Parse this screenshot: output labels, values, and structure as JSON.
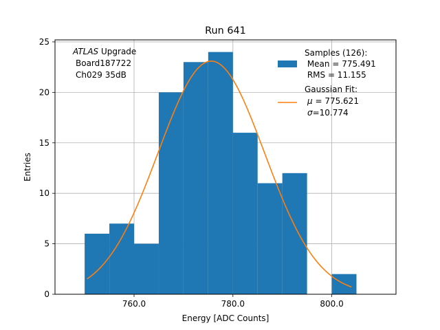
{
  "chart_data": {
    "type": "bar",
    "title": "Run 641",
    "xlabel": "Energy [ADC Counts]",
    "ylabel": "Entries",
    "xlim": [
      744,
      813
    ],
    "ylim": [
      0,
      25.2
    ],
    "grid": true,
    "legend_placement": "top-right",
    "xticks": [
      760,
      780,
      800
    ],
    "xtick_labels": [
      "760.0",
      "780.0",
      "800.0"
    ],
    "yticks": [
      0,
      5,
      10,
      15,
      20,
      25
    ],
    "ytick_labels": [
      "0",
      "5",
      "10",
      "15",
      "20",
      "25"
    ],
    "annotation": {
      "italic": "ATLAS",
      "line1_rest": " Upgrade",
      "line2": "Board187722",
      "line3": "Ch029 35dB"
    },
    "histogram": {
      "name": "Samples (126):",
      "color": "#1f77b4",
      "bin_edges": [
        750,
        755,
        760,
        765,
        770,
        775,
        780,
        785,
        790,
        795,
        800,
        805
      ],
      "counts": [
        6,
        7,
        5,
        20,
        23,
        24,
        16,
        11,
        12,
        0,
        2
      ]
    },
    "fit": {
      "name": "Gaussian Fit:",
      "color": "#ff7f0e",
      "amplitude": 23.1,
      "mu": 775.621,
      "sigma": 10.774,
      "x_range": [
        750.5,
        804.0
      ]
    },
    "legend": {
      "hist_lines": [
        "Samples (126):",
        " Mean = 775.491",
        " RMS = 11.155"
      ],
      "fit_line1": "Gaussian Fit:",
      "fit_mu_symbol": "μ",
      "fit_mu_value": " = 775.621",
      "fit_sigma_symbol": "σ",
      "fit_sigma_value": "=10.774"
    }
  }
}
